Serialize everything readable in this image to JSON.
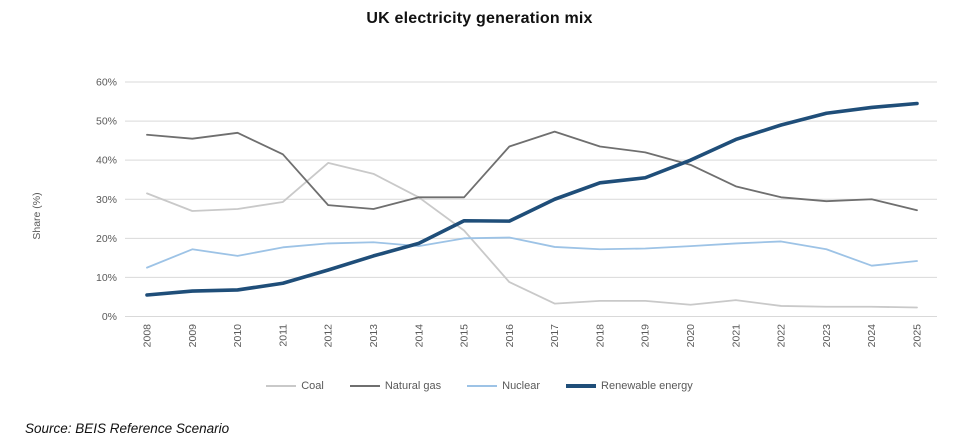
{
  "chart_data": {
    "type": "line",
    "title": "UK electricity generation mix",
    "ylabel": "Share (%)",
    "ylim": [
      0,
      60
    ],
    "ytick_step": 10,
    "ytick_suffix": "%",
    "grid": "horizontal",
    "legend_position": "bottom",
    "categories": [
      "2008",
      "2009",
      "2010",
      "2011",
      "2012",
      "2013",
      "2014",
      "2015",
      "2016",
      "2017",
      "2018",
      "2019",
      "2020",
      "2021",
      "2022",
      "2023",
      "2024",
      "2025"
    ],
    "series": [
      {
        "name": "Coal",
        "color": "#c9c9c9",
        "line_width": 1.8,
        "values": [
          31.5,
          27.0,
          27.5,
          29.3,
          39.3,
          36.5,
          30.5,
          22.0,
          8.8,
          3.3,
          4.0,
          4.0,
          3.0,
          4.2,
          2.7,
          2.5,
          2.5,
          2.3
        ]
      },
      {
        "name": "Natural gas",
        "color": "#6f6f6f",
        "line_width": 1.8,
        "values": [
          46.5,
          45.5,
          47.0,
          41.5,
          28.5,
          27.5,
          30.5,
          30.5,
          43.5,
          47.3,
          43.5,
          42.0,
          38.8,
          33.3,
          30.5,
          29.5,
          30.0,
          27.2
        ]
      },
      {
        "name": "Nuclear",
        "color": "#9dc3e6",
        "line_width": 1.8,
        "values": [
          12.5,
          17.2,
          15.5,
          17.7,
          18.7,
          19.0,
          18.0,
          20.0,
          20.2,
          17.8,
          17.2,
          17.4,
          18.0,
          18.7,
          19.2,
          17.2,
          13.0,
          14.2
        ]
      },
      {
        "name": "Renewable energy",
        "color": "#1f4e79",
        "line_width": 3.6,
        "values": [
          5.5,
          6.5,
          6.8,
          8.5,
          11.9,
          15.5,
          18.7,
          24.5,
          24.4,
          30.0,
          34.2,
          35.5,
          40.0,
          45.3,
          49.0,
          52.0,
          53.5,
          54.5
        ]
      }
    ]
  },
  "source": "Source: BEIS Reference Scenario",
  "colors": {
    "grid": "#d9d9d9",
    "tick_text": "#595959",
    "axis_label_text": "#595959",
    "title_text": "#111111"
  }
}
